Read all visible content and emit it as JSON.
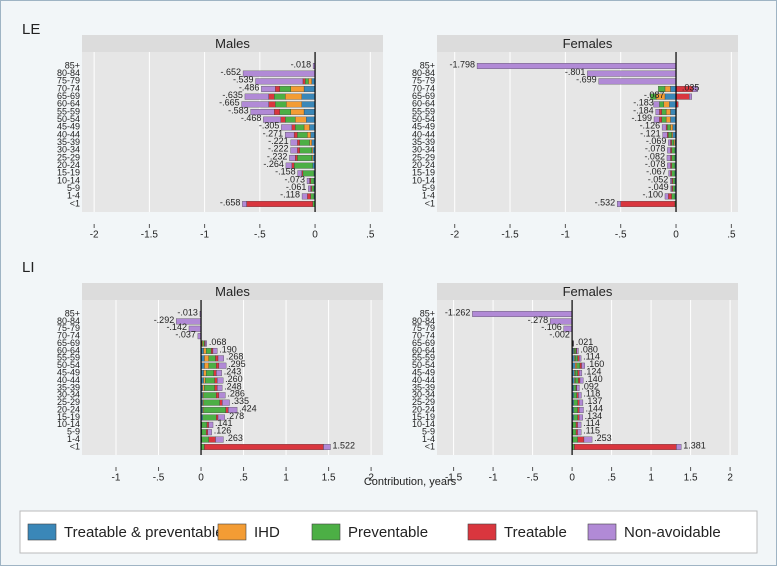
{
  "row_labels": [
    "LE",
    "LI"
  ],
  "x_label": "Contribution, years",
  "chart_data": [
    {
      "type": "hbar",
      "title": "Males",
      "categories": [
        "85+",
        "80-84",
        "75-79",
        "70-74",
        "65-69",
        "60-64",
        "55-59",
        "50-54",
        "45-49",
        "40-44",
        "35-39",
        "30-34",
        "25-29",
        "20-24",
        "15-19",
        "10-14",
        "5-9",
        "1-4",
        "<1"
      ],
      "series": [
        {
          "name": "Treatable & preventable",
          "color": "#3a87b8",
          "values": [
            0,
            0,
            -0.03,
            -0.1,
            -0.12,
            -0.12,
            -0.1,
            -0.08,
            -0.05,
            -0.04,
            -0.03,
            -0.02,
            -0.02,
            -0.02,
            -0.01,
            -0.01,
            -0.01,
            -0.01,
            0
          ]
        },
        {
          "name": "IHD",
          "color": "#f39c34",
          "values": [
            0,
            0,
            -0.03,
            -0.12,
            -0.15,
            -0.14,
            -0.12,
            -0.1,
            -0.05,
            -0.03,
            -0.02,
            -0.01,
            -0.01,
            0,
            0,
            0,
            0,
            0,
            0
          ]
        },
        {
          "name": "Preventable",
          "color": "#4caf45",
          "values": [
            0,
            0,
            -0.03,
            -0.1,
            -0.1,
            -0.1,
            -0.1,
            -0.09,
            -0.08,
            -0.09,
            -0.09,
            -0.11,
            -0.13,
            -0.17,
            -0.1,
            -0.03,
            -0.02,
            -0.03,
            -0.02
          ]
        },
        {
          "name": "Treatable",
          "color": "#d9363e",
          "values": [
            0,
            0,
            -0.02,
            -0.04,
            -0.05,
            -0.06,
            -0.05,
            -0.04,
            -0.03,
            -0.03,
            -0.02,
            -0.02,
            -0.02,
            -0.02,
            -0.01,
            -0.01,
            -0.01,
            -0.03,
            -0.6
          ]
        },
        {
          "name": "Non-avoidable",
          "color": "#b18ad6",
          "values": [
            -0.018,
            -0.652,
            -0.429,
            -0.126,
            -0.215,
            -0.245,
            -0.213,
            -0.158,
            -0.095,
            -0.081,
            -0.061,
            -0.062,
            -0.052,
            -0.054,
            -0.038,
            -0.023,
            -0.021,
            -0.048,
            -0.038
          ]
        }
      ],
      "totals": [
        -0.018,
        -0.652,
        -0.539,
        -0.486,
        -0.635,
        -0.665,
        -0.583,
        -0.468,
        -0.305,
        -0.271,
        -0.221,
        -0.222,
        -0.232,
        -0.264,
        -0.158,
        -0.073,
        -0.061,
        -0.118,
        -0.658
      ],
      "value_labels": [
        "-.018",
        "-.652",
        "-.539",
        "-.486",
        "-.635",
        "-.665",
        "-.583",
        "-.468",
        "-.305",
        "-.271",
        "-.221",
        "-.222",
        "-.232",
        "-.264",
        "-.158",
        "-.073",
        "-.061",
        "-.118",
        "-.658"
      ],
      "xlim": [
        -2.11,
        0.615
      ],
      "xticks": [
        -2,
        -1.5,
        -1,
        {
          "value": -0.5,
          "label": "-.5"
        },
        0,
        {
          "value": 0.5,
          "label": ".5"
        }
      ],
      "grid": true
    },
    {
      "type": "hbar",
      "title": "Females",
      "categories": [
        "85+",
        "80-84",
        "75-79",
        "70-74",
        "65-69",
        "60-64",
        "55-59",
        "50-54",
        "45-49",
        "40-44",
        "35-39",
        "30-34",
        "25-29",
        "20-24",
        "15-19",
        "10-14",
        "5-9",
        "1-4",
        "<1"
      ],
      "series": [
        {
          "name": "Treatable & preventable",
          "color": "#3a87b8",
          "values": [
            0,
            0,
            0,
            -0.05,
            -0.1,
            -0.06,
            -0.05,
            -0.05,
            -0.03,
            -0.03,
            -0.01,
            -0.01,
            -0.01,
            -0.01,
            -0.01,
            -0.01,
            -0.01,
            -0.01,
            0
          ]
        },
        {
          "name": "IHD",
          "color": "#f39c34",
          "values": [
            0,
            0,
            0,
            -0.05,
            -0.08,
            -0.05,
            -0.04,
            -0.04,
            -0.02,
            -0.01,
            -0.01,
            0,
            0,
            0,
            0,
            0,
            0,
            0,
            0
          ]
        },
        {
          "name": "Preventable",
          "color": "#4caf45",
          "values": [
            0,
            0,
            0,
            -0.06,
            -0.05,
            -0.04,
            -0.04,
            -0.04,
            -0.03,
            -0.03,
            -0.02,
            -0.03,
            -0.03,
            -0.03,
            -0.03,
            -0.02,
            -0.02,
            -0.03,
            -0.01
          ]
        },
        {
          "name": "Treatable",
          "color": "#d9363e",
          "values": [
            0,
            0,
            0,
            0.15,
            0.12,
            0.02,
            -0.02,
            -0.02,
            -0.01,
            -0.01,
            -0.01,
            -0.01,
            -0.01,
            -0.01,
            -0.01,
            -0.01,
            -0.01,
            -0.03,
            -0.49
          ]
        },
        {
          "name": "Non-avoidable",
          "color": "#b18ad6",
          "values": [
            -1.798,
            -0.801,
            -0.699,
            0.045,
            0.023,
            -0.053,
            -0.034,
            -0.049,
            -0.036,
            -0.041,
            -0.019,
            -0.028,
            -0.032,
            -0.028,
            -0.017,
            -0.012,
            -0.009,
            -0.03,
            -0.032
          ]
        }
      ],
      "totals": [
        -1.798,
        -0.801,
        -0.699,
        0.035,
        -0.087,
        -0.183,
        -0.184,
        -0.199,
        -0.126,
        -0.121,
        -0.069,
        -0.078,
        -0.082,
        -0.078,
        -0.067,
        -0.052,
        -0.049,
        -0.1,
        -0.532
      ],
      "value_labels": [
        "-1.798",
        "-.801",
        "-.699",
        ".035",
        "-.087",
        "-.183",
        "-.184",
        "-.199",
        "-.126",
        "-.121",
        "-.069",
        "-.078",
        "-.082",
        "-.078",
        "-.067",
        "-.052",
        "-.049",
        "-.100",
        "-.532"
      ],
      "xlim": [
        -2.16,
        0.56
      ],
      "xticks": [
        -2,
        -1.5,
        -1,
        {
          "value": -0.5,
          "label": "-.5"
        },
        0,
        {
          "value": 0.5,
          "label": ".5"
        }
      ],
      "grid": true
    },
    {
      "type": "hbar",
      "title": "Males",
      "categories": [
        "85+",
        "80-84",
        "75-79",
        "70-74",
        "65-69",
        "60-64",
        "55-59",
        "50-54",
        "45-49",
        "40-44",
        "35-39",
        "30-34",
        "25-29",
        "20-24",
        "15-19",
        "10-14",
        "5-9",
        "1-4",
        "<1"
      ],
      "series": [
        {
          "name": "Treatable & preventable",
          "color": "#3a87b8",
          "values": [
            0,
            0,
            0,
            0,
            0.01,
            0.03,
            0.04,
            0.04,
            0.03,
            0.03,
            0.02,
            0.02,
            0.02,
            0.02,
            0.02,
            0.01,
            0.01,
            0.01,
            0
          ]
        },
        {
          "name": "IHD",
          "color": "#f39c34",
          "values": [
            0,
            0,
            0,
            0,
            0.01,
            0.03,
            0.05,
            0.05,
            0.03,
            0.02,
            0.02,
            0.01,
            0.01,
            0.01,
            0,
            0,
            0,
            0,
            0
          ]
        },
        {
          "name": "Preventable",
          "color": "#4caf45",
          "values": [
            0,
            0,
            0,
            0,
            0.02,
            0.06,
            0.08,
            0.09,
            0.09,
            0.11,
            0.12,
            0.15,
            0.19,
            0.26,
            0.16,
            0.06,
            0.05,
            0.08,
            0.04
          ]
        },
        {
          "name": "Treatable",
          "color": "#d9363e",
          "values": [
            0,
            0,
            0,
            0,
            0.01,
            0.02,
            0.03,
            0.03,
            0.03,
            0.03,
            0.03,
            0.03,
            0.03,
            0.03,
            0.02,
            0.02,
            0.02,
            0.08,
            1.4
          ]
        },
        {
          "name": "Non-avoidable",
          "color": "#b18ad6",
          "values": [
            -0.013,
            -0.292,
            -0.142,
            -0.037,
            0.018,
            0.05,
            0.068,
            0.085,
            0.063,
            0.07,
            0.058,
            0.076,
            0.085,
            0.104,
            0.078,
            0.051,
            0.046,
            0.093,
            0.082
          ]
        }
      ],
      "totals": [
        -0.013,
        -0.292,
        -0.142,
        -0.037,
        0.068,
        0.19,
        0.268,
        0.295,
        0.243,
        0.26,
        0.248,
        0.286,
        0.335,
        0.424,
        0.278,
        0.141,
        0.126,
        0.263,
        1.522
      ],
      "value_labels": [
        "-.013",
        "-.292",
        "-.142",
        "-.037",
        ".068",
        ".190",
        ".268",
        ".295",
        ".243",
        ".260",
        ".248",
        ".286",
        ".335",
        ".424",
        ".278",
        ".141",
        ".126",
        ".263",
        "1.522"
      ],
      "xlim": [
        -1.4,
        2.14
      ],
      "xticks": [
        -1,
        {
          "value": -0.5,
          "label": "-.5"
        },
        0,
        {
          "value": 0.5,
          "label": ".5"
        },
        1,
        1.5,
        2
      ],
      "grid": true
    },
    {
      "type": "hbar",
      "title": "Females",
      "categories": [
        "85+",
        "80-84",
        "75-79",
        "70-74",
        "65-69",
        "60-64",
        "55-59",
        "50-54",
        "45-49",
        "40-44",
        "35-39",
        "30-34",
        "25-29",
        "20-24",
        "15-19",
        "10-14",
        "5-9",
        "1-4",
        "<1"
      ],
      "series": [
        {
          "name": "Treatable & preventable",
          "color": "#3a87b8",
          "values": [
            0,
            0,
            0,
            0,
            0.005,
            0.02,
            0.03,
            0.04,
            0.03,
            0.03,
            0.02,
            0.02,
            0.02,
            0.02,
            0.02,
            0.01,
            0.01,
            0.01,
            0
          ]
        },
        {
          "name": "IHD",
          "color": "#f39c34",
          "values": [
            0,
            0,
            0,
            0,
            0.003,
            0.01,
            0.01,
            0.02,
            0.01,
            0.01,
            0,
            0,
            0,
            0,
            0,
            0,
            0,
            0,
            0
          ]
        },
        {
          "name": "Preventable",
          "color": "#4caf45",
          "values": [
            0,
            0,
            0,
            0,
            0.005,
            0.02,
            0.03,
            0.04,
            0.03,
            0.04,
            0.03,
            0.04,
            0.05,
            0.05,
            0.05,
            0.04,
            0.04,
            0.06,
            0.03
          ]
        },
        {
          "name": "Treatable",
          "color": "#d9363e",
          "values": [
            0,
            0,
            0,
            0,
            0.003,
            0.01,
            0.02,
            0.02,
            0.02,
            0.02,
            0.01,
            0.02,
            0.02,
            0.02,
            0.02,
            0.02,
            0.02,
            0.08,
            1.29
          ]
        },
        {
          "name": "Non-avoidable",
          "color": "#b18ad6",
          "values": [
            -1.262,
            -0.278,
            -0.106,
            -0.002,
            0.005,
            0.02,
            0.024,
            0.04,
            0.034,
            0.04,
            0.032,
            0.038,
            0.047,
            0.054,
            0.044,
            0.044,
            0.045,
            0.103,
            0.061
          ]
        }
      ],
      "totals": [
        -1.262,
        -0.278,
        -0.106,
        -0.002,
        0.021,
        0.08,
        0.114,
        0.16,
        0.124,
        0.14,
        0.092,
        0.118,
        0.137,
        0.144,
        0.134,
        0.114,
        0.115,
        0.253,
        1.381
      ],
      "value_labels": [
        "-1.262",
        "-.278",
        "-.106",
        "-.002",
        ".021",
        ".080",
        ".114",
        ".160",
        ".124",
        ".140",
        ".092",
        ".118",
        ".137",
        ".144",
        ".134",
        ".114",
        ".115",
        ".253",
        "1.381"
      ],
      "xlim": [
        -1.71,
        2.1
      ],
      "xticks": [
        -1.5,
        -1,
        {
          "value": -0.5,
          "label": "-.5"
        },
        0,
        {
          "value": 0.5,
          "label": ".5"
        },
        1,
        1.5,
        2
      ],
      "grid": true
    }
  ]
}
